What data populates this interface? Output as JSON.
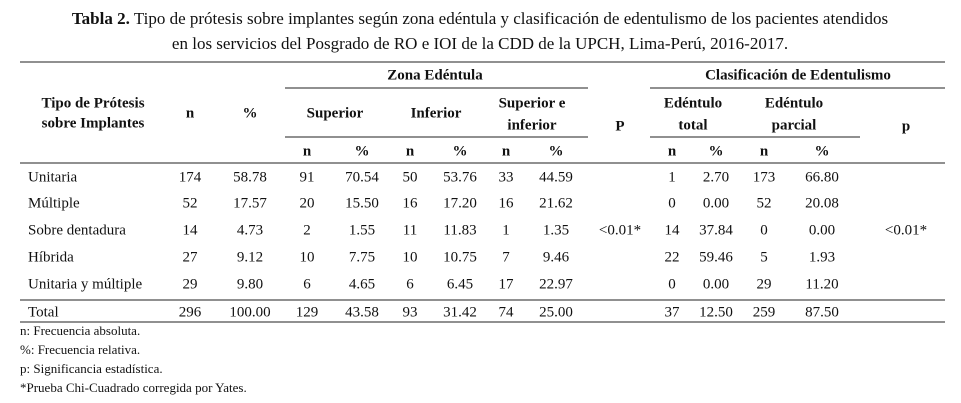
{
  "title": {
    "label": "Tabla 2.",
    "line1": "Tipo de prótesis sobre implantes según zona edéntula y clasificación de edentulismo de los pacientes atendidos",
    "line2": "en los servicios del Posgrado de RO e IOI de la CDD de la UPCH, Lima-Perú, 2016-2017."
  },
  "table": {
    "group_headers": [
      "Zona Edéntula",
      "Clasificación de Edentulismo"
    ],
    "row_header": [
      "Tipo de Prótesis",
      "sobre Implantes"
    ],
    "n_header": "n",
    "pct_header": "%",
    "subgroups": [
      [
        "Superior"
      ],
      [
        "Inferior"
      ],
      [
        "Superior e",
        "inferior"
      ],
      [
        "Edéntulo",
        "total"
      ],
      [
        "Edéntulo",
        "parcial"
      ]
    ],
    "p_headers": [
      "P",
      "p"
    ],
    "sub_columns": [
      "n",
      "%",
      "n",
      "%",
      "n",
      "%",
      "n",
      "%",
      "n",
      "%"
    ],
    "rows": [
      {
        "label": "Unitaria",
        "cells": [
          "174",
          "58.78",
          "91",
          "70.54",
          "50",
          "53.76",
          "33",
          "44.59",
          "1",
          "2.70",
          "173",
          "66.80"
        ]
      },
      {
        "label": "Múltiple",
        "cells": [
          "52",
          "17.57",
          "20",
          "15.50",
          "16",
          "17.20",
          "16",
          "21.62",
          "0",
          "0.00",
          "52",
          "20.08"
        ]
      },
      {
        "label": "Sobre dentadura",
        "cells": [
          "14",
          "4.73",
          "2",
          "1.55",
          "11",
          "11.83",
          "1",
          "1.35",
          "14",
          "37.84",
          "0",
          "0.00"
        ]
      },
      {
        "label": "Híbrida",
        "cells": [
          "27",
          "9.12",
          "10",
          "7.75",
          "10",
          "10.75",
          "7",
          "9.46",
          "22",
          "59.46",
          "5",
          "1.93"
        ]
      },
      {
        "label": "Unitaria y múltiple",
        "cells": [
          "29",
          "9.80",
          "6",
          "4.65",
          "6",
          "6.45",
          "17",
          "22.97",
          "0",
          "0.00",
          "29",
          "11.20"
        ]
      },
      {
        "label": "Total",
        "cells": [
          "296",
          "100.00",
          "129",
          "43.58",
          "93",
          "31.42",
          "74",
          "25.00",
          "37",
          "12.50",
          "259",
          "87.50"
        ]
      }
    ],
    "p_values": [
      "<0.01*",
      "<0.01*"
    ]
  },
  "footnotes": [
    "n: Frecuencia absoluta.",
    "%: Frecuencia relativa.",
    "p: Significancia estadística.",
    "*Prueba Chi-Cuadrado corregida por Yates."
  ]
}
